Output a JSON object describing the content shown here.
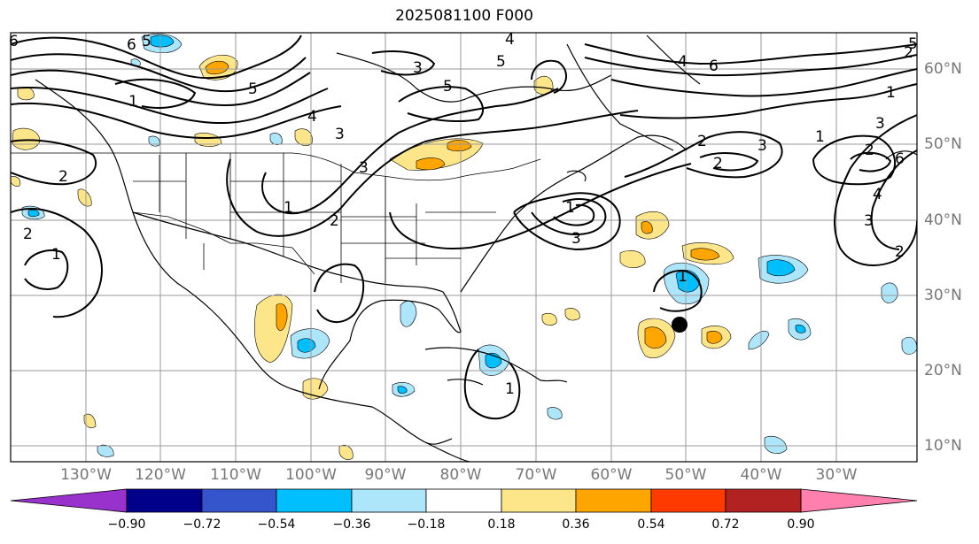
{
  "title": "2025081100 F000",
  "longitude_labels": [
    "130°W",
    "120°W",
    "110°W",
    "100°W",
    "90°W",
    "80°W",
    "70°W",
    "60°W",
    "50°W",
    "40°W",
    "30°W"
  ],
  "latitude_labels": [
    "60°N",
    "50°N",
    "40°N",
    "30°N",
    "20°N",
    "10°N"
  ],
  "contour_labels": [
    "6",
    "5",
    "4",
    "3",
    "2",
    "1",
    "6",
    "5",
    "3",
    "2",
    "1",
    "5",
    "4",
    "3",
    "2",
    "1",
    "2",
    "3",
    "4",
    "5",
    "6",
    "1",
    "2",
    "3",
    "1",
    "2",
    "1",
    "2",
    "3",
    "4",
    "6",
    "5",
    "1",
    "2",
    "3",
    "1"
  ],
  "colorbar": {
    "ticks": [
      "−0.90",
      "−0.72",
      "−0.54",
      "−0.36",
      "−0.18",
      "0.18",
      "0.36",
      "0.54",
      "0.72",
      "0.90"
    ],
    "colors": [
      "#9932cc",
      "#00008b",
      "#3455cc",
      "#00bfff",
      "#ade6fa",
      "#ffffff",
      "#fde68a",
      "#ffa500",
      "#ff3a00",
      "#b22222",
      "#ff7fad"
    ]
  },
  "storm_marker": "tropical-cyclone-position"
}
